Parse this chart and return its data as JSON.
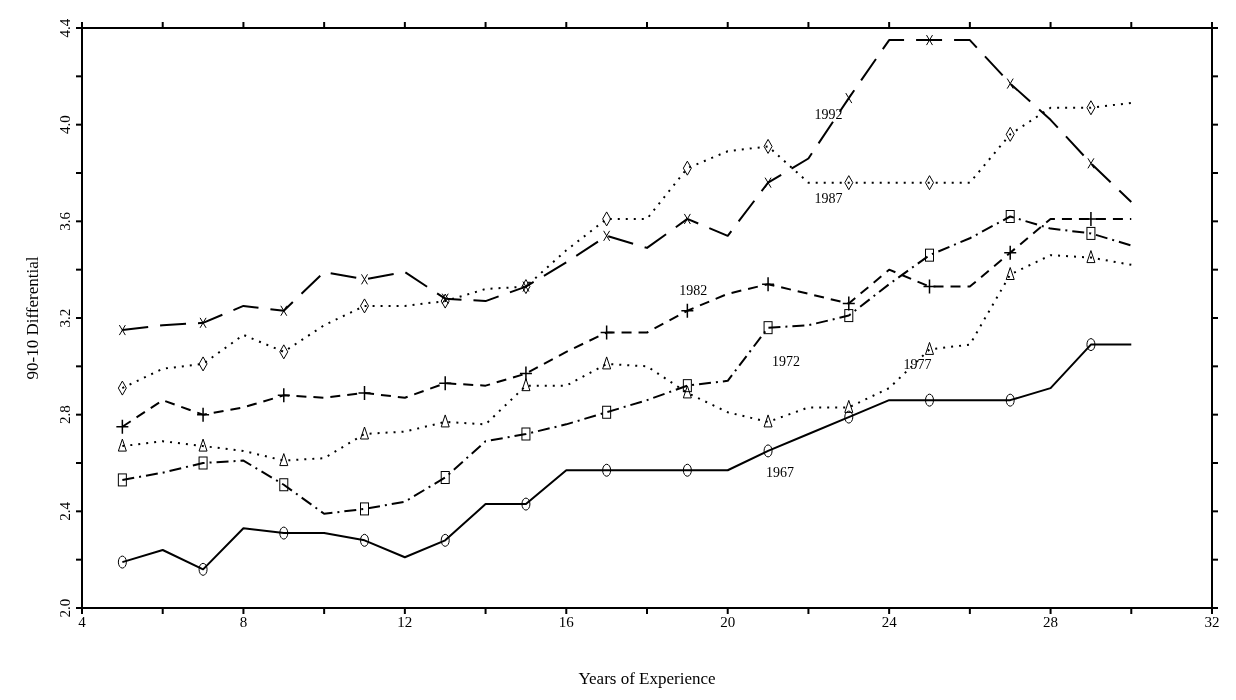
{
  "chart_data": {
    "type": "line",
    "xlabel": "Years of Experience",
    "ylabel": "90-10 Differential",
    "x": [
      5,
      6,
      7,
      8,
      9,
      10,
      11,
      12,
      13,
      14,
      15,
      16,
      17,
      18,
      19,
      20,
      21,
      22,
      23,
      24,
      25,
      26,
      27,
      28,
      29,
      30
    ],
    "series": [
      {
        "name": "1967",
        "color": "#000000",
        "marker": "circle",
        "line_style": "solid",
        "values": [
          2.19,
          2.24,
          2.16,
          2.33,
          2.31,
          2.31,
          2.28,
          2.21,
          2.28,
          2.43,
          2.43,
          2.57,
          2.57,
          2.57,
          2.57,
          2.57,
          2.65,
          2.72,
          2.79,
          2.86,
          2.86,
          2.86,
          2.86,
          2.91,
          3.09,
          3.09
        ]
      },
      {
        "name": "1972",
        "color": "#000000",
        "marker": "square",
        "line_style": "dashdot",
        "values": [
          2.53,
          2.56,
          2.6,
          2.61,
          2.51,
          2.39,
          2.41,
          2.44,
          2.54,
          2.69,
          2.72,
          2.76,
          2.81,
          2.86,
          2.92,
          2.94,
          3.16,
          3.17,
          3.21,
          3.34,
          3.46,
          3.53,
          3.62,
          3.57,
          3.55,
          3.5
        ]
      },
      {
        "name": "1977",
        "color": "#000000",
        "marker": "triangle",
        "line_style": "dotted",
        "values": [
          2.67,
          2.69,
          2.67,
          2.65,
          2.61,
          2.62,
          2.72,
          2.73,
          2.77,
          2.76,
          2.92,
          2.92,
          3.01,
          3.0,
          2.89,
          2.81,
          2.77,
          2.83,
          2.83,
          2.91,
          3.07,
          3.09,
          3.38,
          3.46,
          3.45,
          3.42
        ]
      },
      {
        "name": "1982",
        "color": "#000000",
        "marker": "cross",
        "line_style": "dashed",
        "values": [
          2.75,
          2.86,
          2.8,
          2.83,
          2.88,
          2.87,
          2.89,
          2.87,
          2.93,
          2.92,
          2.97,
          3.06,
          3.14,
          3.14,
          3.23,
          3.3,
          3.34,
          3.3,
          3.26,
          3.4,
          3.33,
          3.33,
          3.47,
          3.61,
          3.61,
          3.61
        ]
      },
      {
        "name": "1987",
        "color": "#000000",
        "marker": "diamond",
        "line_style": "dotted",
        "values": [
          2.91,
          2.99,
          3.01,
          3.13,
          3.06,
          3.17,
          3.25,
          3.25,
          3.27,
          3.32,
          3.33,
          3.48,
          3.61,
          3.61,
          3.82,
          3.89,
          3.91,
          3.76,
          3.76,
          3.76,
          3.76,
          3.76,
          3.96,
          4.07,
          4.07,
          4.09
        ]
      },
      {
        "name": "1992",
        "color": "#000000",
        "marker": "x",
        "line_style": "longdash",
        "values": [
          3.15,
          3.17,
          3.18,
          3.25,
          3.23,
          3.39,
          3.36,
          3.39,
          3.28,
          3.27,
          3.33,
          3.43,
          3.54,
          3.49,
          3.61,
          3.54,
          3.76,
          3.86,
          4.11,
          4.35,
          4.35,
          4.35,
          4.17,
          4.02,
          3.84,
          3.68
        ]
      }
    ],
    "xlim": [
      4,
      32
    ],
    "xticks": [
      4,
      {
        "value": 6,
        "label": null
      },
      8,
      {
        "value": 10,
        "label": null
      },
      12,
      {
        "value": 14,
        "label": null
      },
      16,
      {
        "value": 18,
        "label": null
      },
      20,
      {
        "value": 22,
        "label": null
      },
      24,
      {
        "value": 26,
        "label": null
      },
      28,
      {
        "value": 30,
        "label": null
      },
      32
    ],
    "ylim": [
      2.0,
      4.4
    ],
    "yticks": [
      {
        "value": 2.0,
        "label": "2.0"
      },
      {
        "value": 2.2,
        "label": null
      },
      {
        "value": 2.4,
        "label": "2.4"
      },
      {
        "value": 2.6,
        "label": null
      },
      {
        "value": 2.8,
        "label": "2.8"
      },
      {
        "value": 3.0,
        "label": null
      },
      {
        "value": 3.2,
        "label": "3.2"
      },
      {
        "value": 3.4,
        "label": null
      },
      {
        "value": 3.6,
        "label": "3.6"
      },
      {
        "value": 3.8,
        "label": null
      },
      {
        "value": 4.0,
        "label": "4.0"
      },
      {
        "value": 4.2,
        "label": null
      },
      {
        "value": 4.4,
        "label": "4.4"
      }
    ],
    "grid": false,
    "legend": false
  }
}
